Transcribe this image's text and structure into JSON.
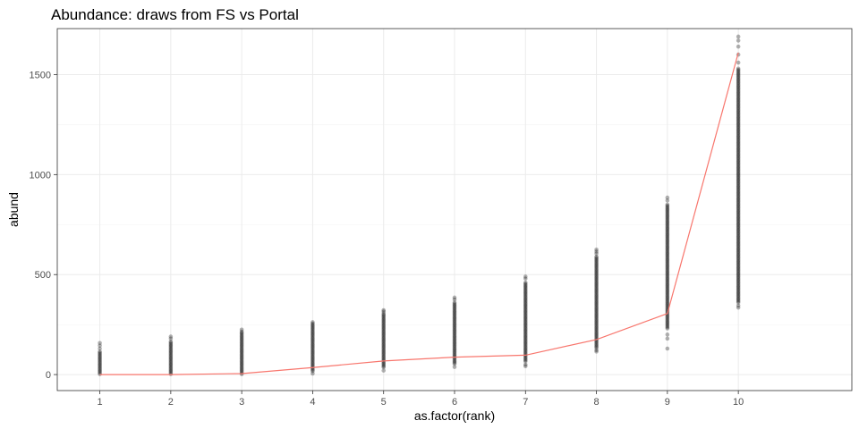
{
  "chart_data": {
    "type": "scatter",
    "title": "Abundance: draws from FS vs Portal",
    "xlabel": "as.factor(rank)",
    "ylabel": "abund",
    "categories": [
      "1",
      "2",
      "3",
      "4",
      "5",
      "6",
      "7",
      "8",
      "9",
      "10"
    ],
    "yticks": [
      0,
      500,
      1000,
      1500
    ],
    "ylim": [
      -80,
      1730
    ],
    "grid": true,
    "colors": {
      "points": "#000000",
      "line": "#f8766d"
    },
    "series": [
      {
        "kind": "points",
        "ranges": [
          {
            "rank": "1",
            "min": 0,
            "max": 115,
            "outliers": [
              130,
              145,
              158
            ]
          },
          {
            "rank": "2",
            "min": 0,
            "max": 165,
            "outliers": [
              180,
              190
            ]
          },
          {
            "rank": "3",
            "min": 0,
            "max": 215,
            "outliers": [
              225
            ]
          },
          {
            "rank": "4",
            "min": 15,
            "max": 255,
            "outliers": [
              5,
              262
            ]
          },
          {
            "rank": "5",
            "min": 30,
            "max": 305,
            "outliers": [
              20,
              315,
              322
            ]
          },
          {
            "rank": "6",
            "min": 50,
            "max": 360,
            "outliers": [
              38,
              375,
              385
            ]
          },
          {
            "rank": "7",
            "min": 60,
            "max": 460,
            "outliers": [
              42,
              50,
              480,
              490
            ]
          },
          {
            "rank": "8",
            "min": 130,
            "max": 590,
            "outliers": [
              115,
              122,
              605,
              615,
              625
            ]
          },
          {
            "rank": "9",
            "min": 230,
            "max": 850,
            "outliers": [
              130,
              180,
              200,
              870,
              885
            ]
          },
          {
            "rank": "10",
            "min": 355,
            "max": 1530,
            "outliers": [
              335,
              345,
              1560,
              1600,
              1640,
              1670,
              1690
            ]
          }
        ]
      },
      {
        "kind": "line",
        "x": [
          "1",
          "2",
          "3",
          "4",
          "5",
          "6",
          "7",
          "8",
          "9",
          "10"
        ],
        "values": [
          0,
          0,
          5,
          35,
          68,
          87,
          97,
          175,
          305,
          1610
        ]
      }
    ]
  }
}
